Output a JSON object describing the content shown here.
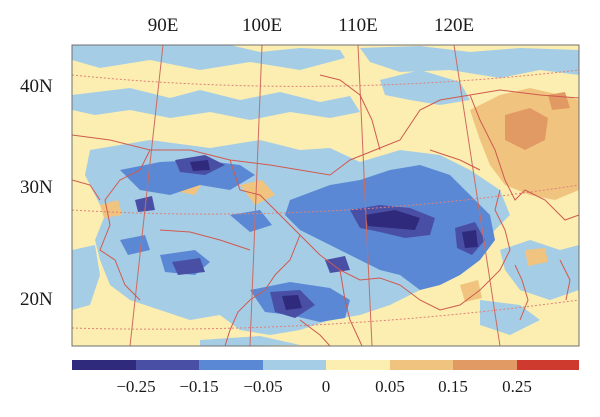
{
  "lon_labels": [
    "90E",
    "100E",
    "110E",
    "120E"
  ],
  "lat_labels": [
    "40N",
    "30N",
    "20N"
  ],
  "colorbar": {
    "tick_labels": [
      "−0.25",
      "−0.15",
      "−0.05",
      "0",
      "0.05",
      "0.15",
      "0.25"
    ],
    "colors": [
      "#2f2a7c",
      "#4a4fa6",
      "#5b88d4",
      "#a6cde6",
      "#fbeeb0",
      "#f0c47e",
      "#e29a64",
      "#cf3a2e"
    ]
  },
  "field_colors": {
    "background": "#fbeeb0",
    "weak_negative": "#a6cde6",
    "moderate_negative": "#5b88d4",
    "strong_negative": "#4a4fa6",
    "strongest_negative": "#2f2a7c",
    "weak_positive": "#f0c47e",
    "moderate_positive": "#e29a64"
  },
  "graticule_color": "#e0807a",
  "boundary_color": "#cf5a4f"
}
